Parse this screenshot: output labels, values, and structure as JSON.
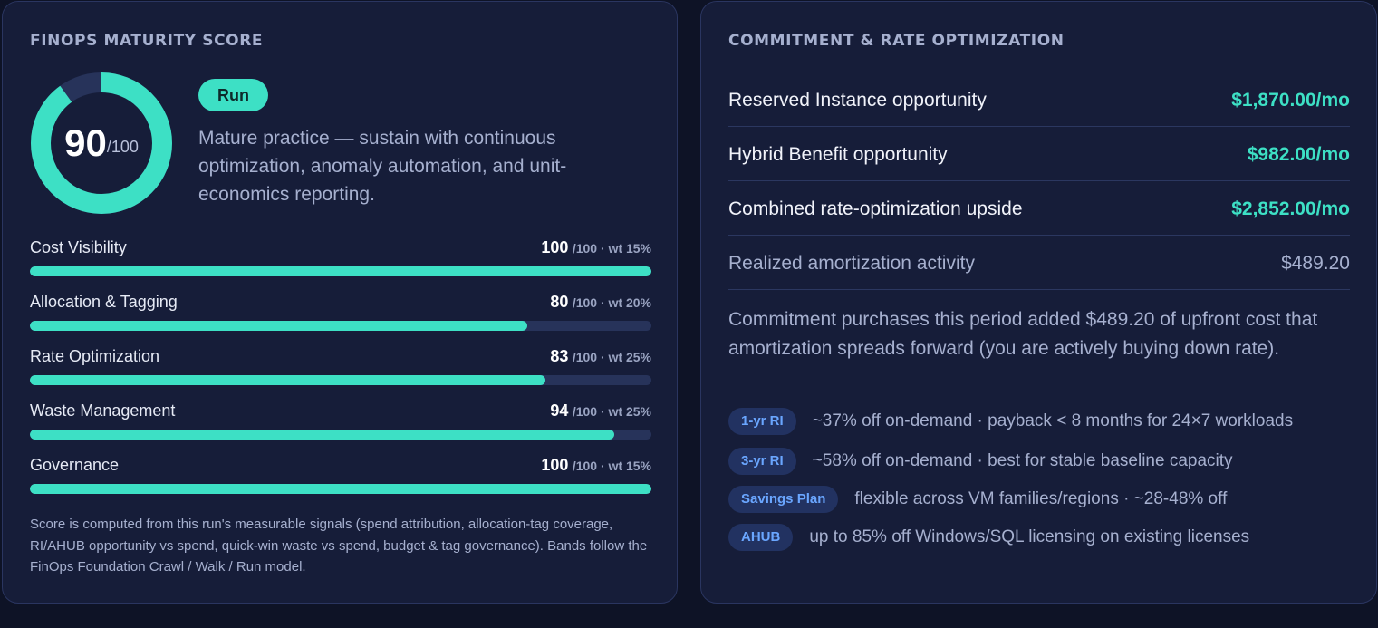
{
  "maturity": {
    "title": "FINOPS MATURITY SCORE",
    "score": "90",
    "score_value": 90,
    "score_denominator": "/100",
    "band": "Run",
    "band_description": "Mature practice — sustain with continuous optimization, anomaly automation, and unit-economics reporting.",
    "metrics": [
      {
        "name": "Cost Visibility",
        "score": "100",
        "detail": "/100 · wt 15%",
        "value": 100
      },
      {
        "name": "Allocation & Tagging",
        "score": "80",
        "detail": "/100 · wt 20%",
        "value": 80
      },
      {
        "name": "Rate Optimization",
        "score": "83",
        "detail": "/100 · wt 25%",
        "value": 83
      },
      {
        "name": "Waste Management",
        "score": "94",
        "detail": "/100 · wt 25%",
        "value": 94
      },
      {
        "name": "Governance",
        "score": "100",
        "detail": "/100 · wt 15%",
        "value": 100
      }
    ],
    "footnote": "Score is computed from this run's measurable signals (spend attribution, allocation-tag coverage, RI/AHUB opportunity vs spend, quick-win waste vs spend, budget & tag governance). Bands follow the FinOps Foundation Crawl / Walk / Run model."
  },
  "commitment": {
    "title": "COMMITMENT & RATE OPTIMIZATION",
    "rows": [
      {
        "label": "Reserved Instance opportunity",
        "value": "$1,870.00/mo"
      },
      {
        "label": "Hybrid Benefit opportunity",
        "value": "$982.00/mo"
      },
      {
        "label": "Combined rate-optimization upside",
        "value": "$2,852.00/mo"
      },
      {
        "label": "Realized amortization activity",
        "value": "$489.20"
      }
    ],
    "note": "Commitment purchases this period added $489.20 of upfront cost that amortization spreads forward (you are actively buying down rate).",
    "chips": [
      {
        "tag": "1-yr RI",
        "text": "~37% off on-demand · payback < 8 months for 24×7 workloads"
      },
      {
        "tag": "3-yr RI",
        "text": "~58% off on-demand · best for stable baseline capacity"
      },
      {
        "tag": "Savings Plan",
        "text": "flexible across VM families/regions · ~28-48% off"
      },
      {
        "tag": "AHUB",
        "text": "up to 85% off Windows/SQL licensing on existing licenses"
      }
    ]
  },
  "colors": {
    "accent": "#3de0c5",
    "chip_text": "#6aa6ff",
    "panel_bg": "#161d39",
    "track": "#27335a"
  }
}
